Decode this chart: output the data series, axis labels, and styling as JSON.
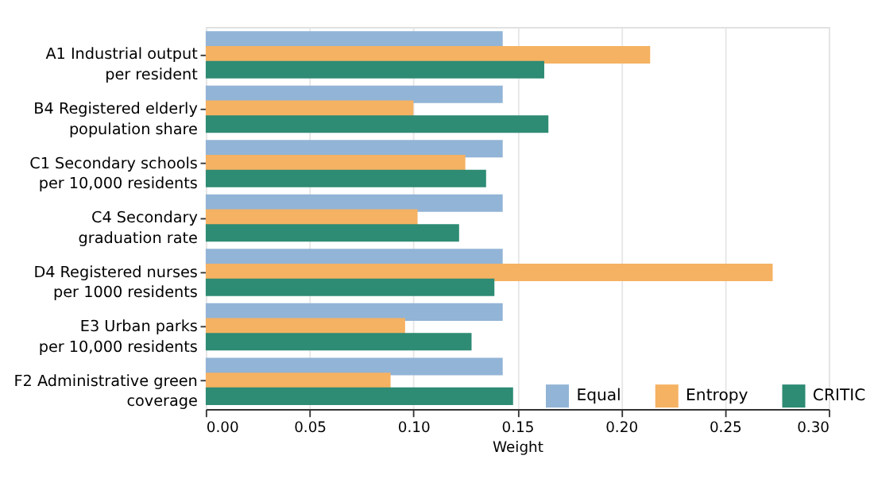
{
  "chart_data": {
    "type": "bar",
    "orientation": "horizontal",
    "xlabel": "Weight",
    "categories": [
      "A1  Industrial output\nper resident",
      "B4  Registered elderly\npopulation share",
      "C1  Secondary schools\nper 10,000 residents",
      "C4  Secondary\ngraduation rate",
      "D4  Registered nurses\nper 1000 residents",
      "E3  Urban parks\nper 10,000 residents",
      "F2  Administrative green\ncoverage"
    ],
    "series": [
      {
        "name": "Equal",
        "color": "#92b4d6",
        "values": [
          0.143,
          0.143,
          0.143,
          0.143,
          0.143,
          0.143,
          0.143
        ]
      },
      {
        "name": "Entropy",
        "color": "#f5b262",
        "values": [
          0.214,
          0.1,
          0.125,
          0.102,
          0.273,
          0.096,
          0.089
        ]
      },
      {
        "name": "CRITIC",
        "color": "#2e8b74",
        "values": [
          0.163,
          0.165,
          0.135,
          0.122,
          0.139,
          0.128,
          0.148
        ]
      }
    ],
    "xlim": [
      0,
      0.3
    ],
    "xticks": [
      {
        "value": 0,
        "label": "0.00"
      },
      {
        "value": 0.05,
        "label": "0.05"
      },
      {
        "value": 0.1,
        "label": "0.10"
      },
      {
        "value": 0.15,
        "label": "0.15"
      },
      {
        "value": 0.2,
        "label": "0.20"
      },
      {
        "value": 0.25,
        "label": "0.25"
      },
      {
        "value": 0.3,
        "label": "0.30"
      }
    ],
    "grid": "x",
    "legend": "bottom right"
  }
}
